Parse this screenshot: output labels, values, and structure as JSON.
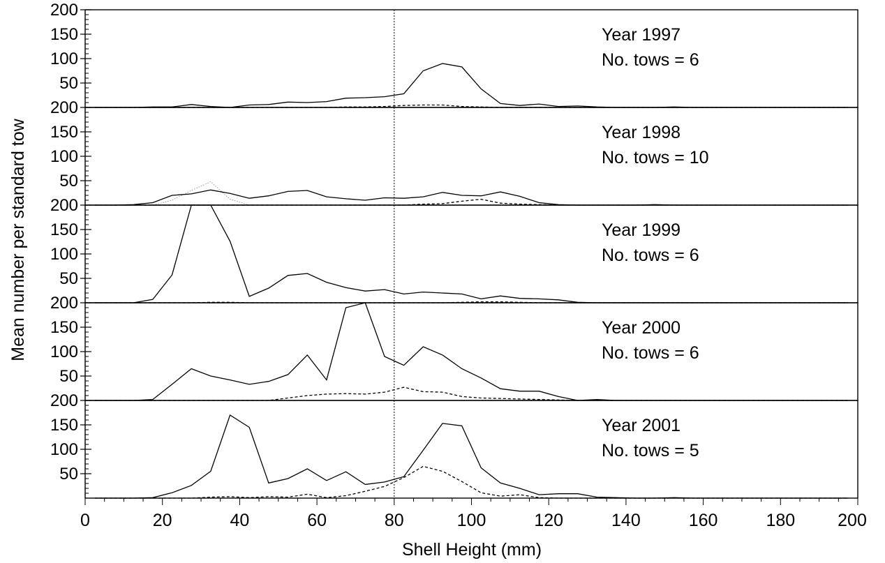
{
  "chart_data": {
    "type": "line",
    "xlabel": "Shell Height (mm)",
    "ylabel": "Mean number per standard tow",
    "xlim": [
      0,
      200
    ],
    "ylim": [
      0,
      200
    ],
    "x_ticks": [
      "0",
      "20",
      "40",
      "60",
      "80",
      "100",
      "120",
      "140",
      "160",
      "180",
      "200"
    ],
    "y_ticks": [
      "50",
      "100",
      "150",
      "200"
    ],
    "reference_line_x": 80,
    "x": [
      2.5,
      7.5,
      12.5,
      17.5,
      22.5,
      27.5,
      32.5,
      37.5,
      42.5,
      47.5,
      52.5,
      57.5,
      62.5,
      67.5,
      72.5,
      77.5,
      82.5,
      87.5,
      92.5,
      97.5,
      102.5,
      107.5,
      112.5,
      117.5,
      122.5,
      127.5,
      132.5,
      137.5,
      142.5,
      147.5,
      152.5,
      157.5,
      162.5,
      167.5,
      172.5,
      177.5,
      182.5,
      187.5,
      192.5,
      197.5
    ],
    "panels": [
      {
        "label_year": "Year 1997",
        "label_tows": "No. tows = 6",
        "solid": [
          0,
          0,
          0,
          1,
          1,
          6,
          2,
          0,
          5,
          6,
          11,
          10,
          12,
          19,
          20,
          22,
          28,
          75,
          90,
          83,
          38,
          8,
          4,
          7,
          2,
          3,
          1,
          0,
          0,
          0,
          1,
          0,
          0,
          0,
          0,
          0,
          0,
          0,
          0,
          0
        ],
        "dashed": [
          0,
          0,
          0,
          0,
          0,
          0,
          0,
          0,
          0,
          0,
          0,
          0,
          0,
          1,
          1,
          2,
          4,
          5,
          5,
          2,
          1,
          0,
          0,
          0,
          0,
          0,
          0,
          0,
          0,
          0,
          0,
          0,
          0,
          0,
          0,
          0,
          0,
          0,
          0,
          0
        ],
        "dotted": []
      },
      {
        "label_year": "Year 1998",
        "label_tows": "No. tows = 10",
        "solid": [
          0,
          0,
          1,
          5,
          20,
          23,
          31,
          24,
          14,
          19,
          28,
          30,
          17,
          13,
          10,
          15,
          14,
          17,
          26,
          20,
          19,
          27,
          18,
          5,
          1,
          0,
          0,
          0,
          0,
          1,
          0,
          0,
          0,
          0,
          0,
          0,
          0,
          0,
          0,
          0
        ],
        "dashed": [
          0,
          0,
          0,
          0,
          0,
          0,
          0,
          0,
          0,
          0,
          0,
          0,
          0,
          0,
          0,
          0,
          0,
          2,
          3,
          8,
          12,
          4,
          2,
          1,
          0,
          0,
          0,
          0,
          0,
          0,
          0,
          0,
          0,
          0,
          0,
          0,
          0,
          0,
          0,
          0
        ],
        "dotted": [
          0,
          0,
          0,
          0,
          10,
          30,
          48,
          12,
          0,
          0,
          0,
          0,
          0,
          0,
          0,
          0,
          0,
          0,
          0,
          0,
          0,
          0,
          0,
          0,
          0,
          0,
          0,
          0,
          0,
          0,
          0,
          0,
          0,
          0,
          0,
          0,
          0,
          0,
          0,
          0
        ]
      },
      {
        "label_year": "Year 1999",
        "label_tows": "No. tows = 6",
        "solid": [
          0,
          0,
          0,
          7,
          57,
          200,
          200,
          126,
          13,
          30,
          56,
          60,
          42,
          31,
          24,
          27,
          18,
          22,
          20,
          18,
          8,
          14,
          9,
          8,
          6,
          1,
          0,
          0,
          0,
          0,
          0,
          0,
          0,
          0,
          0,
          0,
          0,
          0,
          0,
          0
        ],
        "dashed": [
          0,
          0,
          0,
          0,
          0,
          0,
          1,
          1,
          0,
          0,
          0,
          0,
          0,
          0,
          0,
          0,
          0,
          0,
          0,
          1,
          2,
          2,
          1,
          0,
          0,
          0,
          0,
          0,
          0,
          0,
          0,
          0,
          0,
          0,
          0,
          0,
          0,
          0,
          0,
          0
        ],
        "dotted": []
      },
      {
        "label_year": "Year 2000",
        "label_tows": "No. tows = 6",
        "solid": [
          0,
          0,
          0,
          2,
          33,
          65,
          50,
          42,
          33,
          39,
          53,
          93,
          42,
          190,
          200,
          90,
          72,
          110,
          93,
          65,
          46,
          24,
          19,
          19,
          8,
          0,
          2,
          0,
          0,
          0,
          0,
          0,
          0,
          0,
          0,
          0,
          0,
          0,
          0,
          0
        ],
        "dashed": [
          0,
          0,
          0,
          0,
          0,
          0,
          0,
          0,
          0,
          0,
          5,
          10,
          13,
          14,
          13,
          17,
          27,
          18,
          17,
          8,
          5,
          4,
          3,
          2,
          1,
          0,
          0,
          0,
          0,
          0,
          0,
          0,
          0,
          0,
          0,
          0,
          0,
          0,
          0,
          0
        ],
        "dotted": []
      },
      {
        "label_year": "Year 2001",
        "label_tows": "No. tows = 5",
        "solid": [
          0,
          0,
          0,
          1,
          11,
          26,
          55,
          170,
          145,
          31,
          40,
          60,
          36,
          54,
          28,
          33,
          44,
          98,
          153,
          148,
          62,
          31,
          20,
          7,
          9,
          9,
          2,
          1,
          0,
          0,
          1,
          0,
          0,
          0,
          0,
          0,
          0,
          0,
          0,
          0
        ],
        "dashed": [
          0,
          0,
          0,
          0,
          0,
          0,
          2,
          3,
          1,
          3,
          2,
          8,
          1,
          5,
          14,
          24,
          42,
          65,
          55,
          34,
          11,
          4,
          7,
          1,
          0,
          0,
          0,
          0,
          0,
          0,
          0,
          0,
          0,
          0,
          0,
          0,
          0,
          0,
          0,
          0
        ],
        "dotted": []
      }
    ]
  }
}
